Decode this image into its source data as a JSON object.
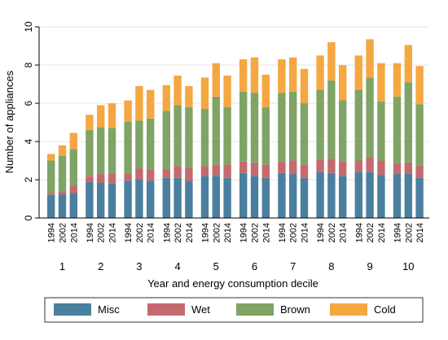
{
  "chart_data": {
    "type": "bar",
    "stacked": true,
    "ylabel": "Number of appliances",
    "xlabel": "Year and energy consumption decile",
    "ylim": [
      0,
      10
    ],
    "yticks": [
      0,
      2,
      4,
      6,
      8,
      10
    ],
    "grid": true,
    "legend_position": "bottom",
    "years": [
      "1994",
      "2002",
      "2014"
    ],
    "deciles": [
      "1",
      "2",
      "3",
      "4",
      "5",
      "6",
      "7",
      "8",
      "9",
      "10"
    ],
    "series": [
      {
        "name": "Misc",
        "color": "#4a7fa0",
        "values": [
          [
            1.2,
            1.25,
            1.3
          ],
          [
            1.9,
            1.85,
            1.8
          ],
          [
            1.95,
            2.0,
            1.95
          ],
          [
            2.1,
            2.1,
            1.95
          ],
          [
            2.2,
            2.2,
            2.1
          ],
          [
            2.35,
            2.2,
            2.1
          ],
          [
            2.35,
            2.3,
            2.1
          ],
          [
            2.4,
            2.35,
            2.2
          ],
          [
            2.4,
            2.4,
            2.25
          ],
          [
            2.3,
            2.3,
            2.1
          ]
        ]
      },
      {
        "name": "Wet",
        "color": "#c46a6e",
        "values": [
          [
            0.1,
            0.15,
            0.4
          ],
          [
            0.3,
            0.45,
            0.55
          ],
          [
            0.4,
            0.6,
            0.6
          ],
          [
            0.45,
            0.6,
            0.7
          ],
          [
            0.5,
            0.6,
            0.7
          ],
          [
            0.6,
            0.7,
            0.7
          ],
          [
            0.6,
            0.7,
            0.7
          ],
          [
            0.65,
            0.75,
            0.75
          ],
          [
            0.6,
            0.75,
            0.75
          ],
          [
            0.55,
            0.6,
            0.65
          ]
        ]
      },
      {
        "name": "Brown",
        "color": "#7fa465",
        "values": [
          [
            1.7,
            1.85,
            1.9
          ],
          [
            2.4,
            2.45,
            2.35
          ],
          [
            2.7,
            2.5,
            2.65
          ],
          [
            3.05,
            3.2,
            3.15
          ],
          [
            3.0,
            3.55,
            3.0
          ],
          [
            3.65,
            3.65,
            3.0
          ],
          [
            3.6,
            3.6,
            3.2
          ],
          [
            3.65,
            4.1,
            3.2
          ],
          [
            3.7,
            4.2,
            3.1
          ],
          [
            3.5,
            4.2,
            3.2
          ]
        ]
      },
      {
        "name": "Cold",
        "color": "#f5a742",
        "values": [
          [
            0.35,
            0.55,
            0.85
          ],
          [
            0.8,
            1.15,
            1.3
          ],
          [
            1.1,
            1.8,
            1.5
          ],
          [
            1.35,
            1.55,
            1.1
          ],
          [
            1.65,
            1.75,
            1.65
          ],
          [
            1.7,
            1.85,
            1.7
          ],
          [
            1.75,
            1.8,
            1.8
          ],
          [
            1.8,
            2.0,
            1.85
          ],
          [
            1.8,
            2.0,
            2.0
          ],
          [
            1.75,
            1.95,
            2.0
          ]
        ]
      }
    ]
  }
}
